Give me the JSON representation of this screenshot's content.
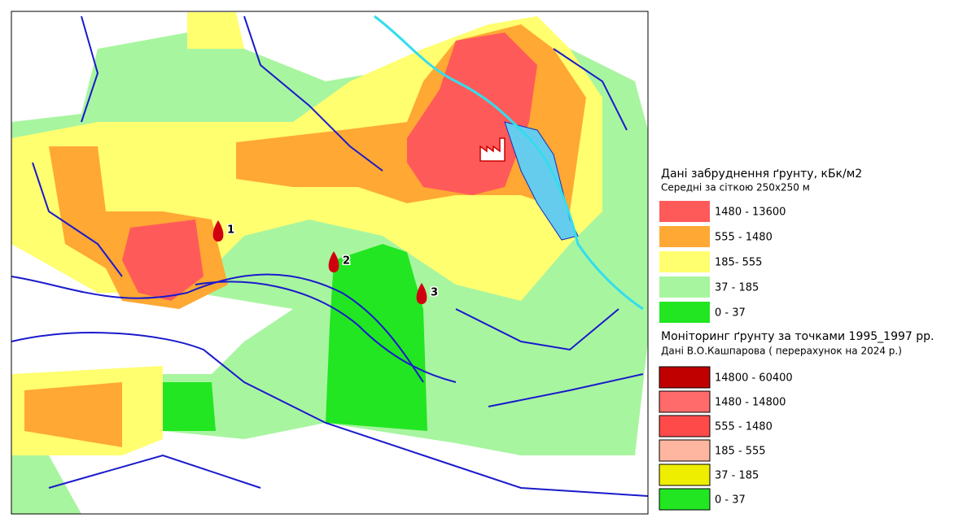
{
  "map": {
    "markers": [
      {
        "label": "1"
      },
      {
        "label": "2"
      },
      {
        "label": "3"
      }
    ]
  },
  "legend_grid": {
    "title": "Дані забруднення ґрунту, кБк/м2",
    "subtitle": "Середні за сіткою 250x250 м",
    "items": [
      {
        "label": "1480  -  13600",
        "color": "#ff5a5a"
      },
      {
        "label": "555  -  1480",
        "color": "#ffa833"
      },
      {
        "label": "185- 555",
        "color": "#ffff70"
      },
      {
        "label": "37  -    185",
        "color": "#a8f5a0"
      },
      {
        "label": "0  -     37",
        "color": "#22e622"
      }
    ]
  },
  "legend_points": {
    "title": "Моніторинг ґрунту за точками 1995_1997 рр.",
    "subtitle": "Дані В.О.Кашпарова ( перерахунок на 2024 р.)",
    "items": [
      {
        "label": "14800  - 60400",
        "color": "#c00000"
      },
      {
        "label": "1480  - 14800",
        "color": "#ff6a6a"
      },
      {
        "label": "555  -  1480",
        "color": "#ff4a4a"
      },
      {
        "label": "185  -    555",
        "color": "#ffb6a0"
      },
      {
        "label": "37  -    185",
        "color": "#eeee00"
      },
      {
        "label": "0  -      37",
        "color": "#22e622"
      }
    ]
  }
}
